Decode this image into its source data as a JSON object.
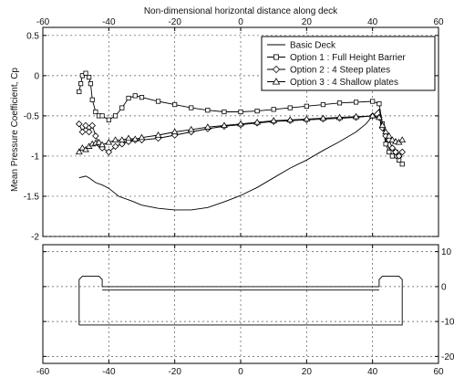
{
  "chart_data": [
    {
      "type": "line",
      "title": "Non-dimensional horizontal distance along deck",
      "xlabel": "",
      "ylabel": "Mean Pressure Coefficient, Cp",
      "xlim": [
        -60,
        60
      ],
      "ylim": [
        -2,
        0.6
      ],
      "x_ticks": [
        -60,
        -40,
        -20,
        0,
        20,
        40,
        60
      ],
      "y_ticks": [
        0.5,
        0,
        -0.5,
        -1,
        -1.5,
        -2
      ],
      "grid": true,
      "legend_position": "top-right",
      "series": [
        {
          "name": "Basic Deck",
          "marker": "none",
          "color": "#000000",
          "points": [
            [
              -49,
              -1.27
            ],
            [
              -47,
              -1.25
            ],
            [
              -46,
              -1.27
            ],
            [
              -44,
              -1.33
            ],
            [
              -42,
              -1.36
            ],
            [
              -40,
              -1.4
            ],
            [
              -37,
              -1.5
            ],
            [
              -33,
              -1.56
            ],
            [
              -30,
              -1.61
            ],
            [
              -25,
              -1.65
            ],
            [
              -20,
              -1.67
            ],
            [
              -15,
              -1.67
            ],
            [
              -10,
              -1.64
            ],
            [
              -5,
              -1.57
            ],
            [
              0,
              -1.49
            ],
            [
              5,
              -1.39
            ],
            [
              10,
              -1.27
            ],
            [
              15,
              -1.15
            ],
            [
              20,
              -1.05
            ],
            [
              25,
              -0.93
            ],
            [
              30,
              -0.82
            ],
            [
              35,
              -0.7
            ],
            [
              38,
              -0.6
            ],
            [
              40,
              -0.5
            ],
            [
              42,
              -0.42
            ],
            [
              43,
              -0.6
            ],
            [
              44,
              -0.8
            ],
            [
              45,
              -0.9
            ],
            [
              46,
              -1.0
            ],
            [
              48,
              -1.05
            ],
            [
              49,
              -1.0
            ]
          ]
        },
        {
          "name": "Option 1 : Full Height Barrier",
          "marker": "square",
          "color": "#000000",
          "points": [
            [
              -49,
              -0.2
            ],
            [
              -48.5,
              -0.1
            ],
            [
              -48,
              0
            ],
            [
              -47,
              0.03
            ],
            [
              -46,
              -0.02
            ],
            [
              -45.5,
              -0.1
            ],
            [
              -45,
              -0.3
            ],
            [
              -44,
              -0.45
            ],
            [
              -43,
              -0.5
            ],
            [
              -42,
              -0.5
            ],
            [
              -40,
              -0.55
            ],
            [
              -38,
              -0.5
            ],
            [
              -36,
              -0.4
            ],
            [
              -34,
              -0.28
            ],
            [
              -32,
              -0.25
            ],
            [
              -30,
              -0.27
            ],
            [
              -25,
              -0.32
            ],
            [
              -20,
              -0.36
            ],
            [
              -15,
              -0.4
            ],
            [
              -10,
              -0.43
            ],
            [
              -5,
              -0.45
            ],
            [
              0,
              -0.45
            ],
            [
              5,
              -0.44
            ],
            [
              10,
              -0.42
            ],
            [
              15,
              -0.4
            ],
            [
              20,
              -0.38
            ],
            [
              25,
              -0.36
            ],
            [
              30,
              -0.34
            ],
            [
              35,
              -0.33
            ],
            [
              40,
              -0.32
            ],
            [
              42,
              -0.35
            ],
            [
              43,
              -0.6
            ],
            [
              44,
              -0.85
            ],
            [
              45,
              -0.95
            ],
            [
              46,
              -1.0
            ],
            [
              47,
              -0.95
            ],
            [
              48,
              -1.05
            ],
            [
              49,
              -1.1
            ]
          ]
        },
        {
          "name": "Option 2 : 4 Steep plates",
          "marker": "diamond",
          "color": "#000000",
          "points": [
            [
              -49,
              -0.6
            ],
            [
              -48,
              -0.7
            ],
            [
              -47,
              -0.62
            ],
            [
              -46,
              -0.7
            ],
            [
              -45,
              -0.62
            ],
            [
              -44,
              -0.75
            ],
            [
              -43,
              -0.85
            ],
            [
              -42,
              -0.9
            ],
            [
              -40,
              -0.95
            ],
            [
              -38,
              -0.88
            ],
            [
              -36,
              -0.85
            ],
            [
              -34,
              -0.82
            ],
            [
              -32,
              -0.8
            ],
            [
              -30,
              -0.8
            ],
            [
              -25,
              -0.78
            ],
            [
              -20,
              -0.74
            ],
            [
              -15,
              -0.7
            ],
            [
              -10,
              -0.66
            ],
            [
              -5,
              -0.63
            ],
            [
              0,
              -0.61
            ],
            [
              5,
              -0.59
            ],
            [
              10,
              -0.57
            ],
            [
              15,
              -0.56
            ],
            [
              20,
              -0.55
            ],
            [
              25,
              -0.54
            ],
            [
              30,
              -0.53
            ],
            [
              35,
              -0.52
            ],
            [
              40,
              -0.5
            ],
            [
              42,
              -0.52
            ],
            [
              43,
              -0.65
            ],
            [
              44,
              -0.75
            ],
            [
              45,
              -0.8
            ],
            [
              46,
              -0.9
            ],
            [
              47,
              -0.95
            ],
            [
              48,
              -1.0
            ],
            [
              49,
              -0.95
            ]
          ]
        },
        {
          "name": "Option 3 : 4 Shallow plates",
          "marker": "triangle",
          "color": "#000000",
          "points": [
            [
              -49,
              -0.95
            ],
            [
              -48,
              -0.9
            ],
            [
              -47,
              -0.92
            ],
            [
              -46,
              -0.88
            ],
            [
              -45,
              -0.85
            ],
            [
              -44,
              -0.84
            ],
            [
              -43,
              -0.83
            ],
            [
              -42,
              -0.86
            ],
            [
              -40,
              -0.83
            ],
            [
              -38,
              -0.8
            ],
            [
              -36,
              -0.8
            ],
            [
              -34,
              -0.78
            ],
            [
              -32,
              -0.79
            ],
            [
              -30,
              -0.77
            ],
            [
              -25,
              -0.74
            ],
            [
              -20,
              -0.7
            ],
            [
              -15,
              -0.67
            ],
            [
              -10,
              -0.64
            ],
            [
              -5,
              -0.62
            ],
            [
              0,
              -0.6
            ],
            [
              5,
              -0.58
            ],
            [
              10,
              -0.56
            ],
            [
              15,
              -0.55
            ],
            [
              20,
              -0.54
            ],
            [
              25,
              -0.53
            ],
            [
              30,
              -0.52
            ],
            [
              35,
              -0.51
            ],
            [
              40,
              -0.5
            ],
            [
              42,
              -0.52
            ],
            [
              43,
              -0.62
            ],
            [
              44,
              -0.7
            ],
            [
              45,
              -0.75
            ],
            [
              46,
              -0.8
            ],
            [
              47,
              -0.82
            ],
            [
              48,
              -0.83
            ],
            [
              49,
              -0.8
            ]
          ]
        }
      ]
    },
    {
      "type": "line",
      "title": "",
      "xlabel": "",
      "ylabel": "",
      "xlim": [
        -60,
        60
      ],
      "ylim": [
        -22,
        12
      ],
      "x_ticks": [
        -60,
        -40,
        -20,
        0,
        20,
        40,
        60
      ],
      "y_ticks": [
        10,
        0,
        -10,
        -20
      ],
      "y_axis_side": "right",
      "grid": true,
      "series": [
        {
          "marker": "none",
          "color": "#000000",
          "points": [
            [
              -49,
              -11
            ],
            [
              -49,
              2
            ],
            [
              -48,
              3
            ],
            [
              -43,
              3
            ],
            [
              -42,
              2
            ],
            [
              -42,
              0
            ],
            [
              42,
              0
            ],
            [
              42,
              2
            ],
            [
              43,
              3
            ],
            [
              48,
              3
            ],
            [
              49,
              2
            ],
            [
              49,
              -11
            ],
            [
              -49,
              -11
            ]
          ]
        },
        {
          "marker": "none",
          "color": "#000000",
          "points": [
            [
              -42,
              -1
            ],
            [
              42,
              -1
            ]
          ]
        }
      ]
    }
  ]
}
